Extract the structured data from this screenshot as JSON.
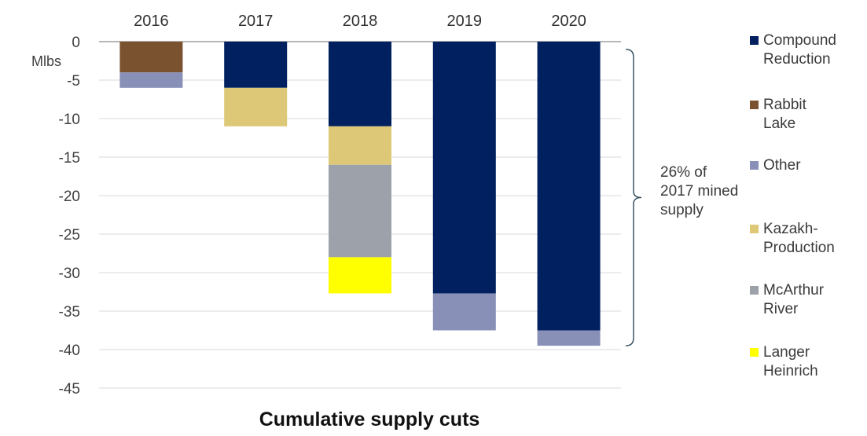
{
  "chart_data": {
    "type": "bar",
    "stacked": true,
    "title": "Cumulative supply cuts",
    "ylabel": "Mlbs",
    "xlabel": "",
    "ylim": [
      -45,
      0
    ],
    "yticks": [
      0,
      -5,
      -10,
      -15,
      -20,
      -25,
      -30,
      -35,
      -40,
      -45
    ],
    "grid": true,
    "legend_position": "right",
    "categories": [
      "2016",
      "2017",
      "2018",
      "2019",
      "2020"
    ],
    "series": [
      {
        "name": "Compound Reduction",
        "color": "#002060",
        "values": [
          0,
          -6,
          -11,
          -32.7,
          -37.5
        ]
      },
      {
        "name": "Rabbit Lake",
        "color": "#7b5230",
        "values": [
          -4,
          0,
          0,
          0,
          0
        ]
      },
      {
        "name": "Other",
        "color": "#8890b8",
        "values": [
          -2,
          0,
          0,
          -4.8,
          -2
        ]
      },
      {
        "name": "Kazakh-Production",
        "color": "#ddc878",
        "values": [
          0,
          -5,
          -5,
          0,
          0
        ]
      },
      {
        "name": "McArthur River",
        "color": "#9ca1aa",
        "values": [
          0,
          0,
          -12,
          0,
          0
        ]
      },
      {
        "name": "Langer Heinrich",
        "color": "#ffff00",
        "values": [
          0,
          0,
          -4.7,
          0,
          0
        ]
      }
    ],
    "stack_order": {
      "2016": [
        "Rabbit Lake",
        "Other"
      ],
      "2017": [
        "Compound Reduction",
        "Kazakh-Production"
      ],
      "2018": [
        "Compound Reduction",
        "Kazakh-Production",
        "McArthur River",
        "Langer Heinrich"
      ],
      "2019": [
        "Compound Reduction",
        "Other"
      ],
      "2020": [
        "Compound Reduction",
        "Other"
      ]
    },
    "annotations": [
      {
        "text": "26% of 2017 mined supply",
        "bracket_from": 2019,
        "bracket_to": 2020,
        "y_range": [
          -1,
          -39.5
        ]
      }
    ]
  },
  "legend": {
    "items": [
      {
        "label": "Compound Reduction",
        "color": "#002060"
      },
      {
        "label": "Rabbit Lake",
        "color": "#7b5230"
      },
      {
        "label": "Other",
        "color": "#8890b8"
      },
      {
        "label": "Kazakh-Production",
        "color": "#ddc878"
      },
      {
        "label": "McArthur River",
        "color": "#9ca1aa"
      },
      {
        "label": "Langer Heinrich",
        "color": "#ffff00"
      }
    ]
  }
}
